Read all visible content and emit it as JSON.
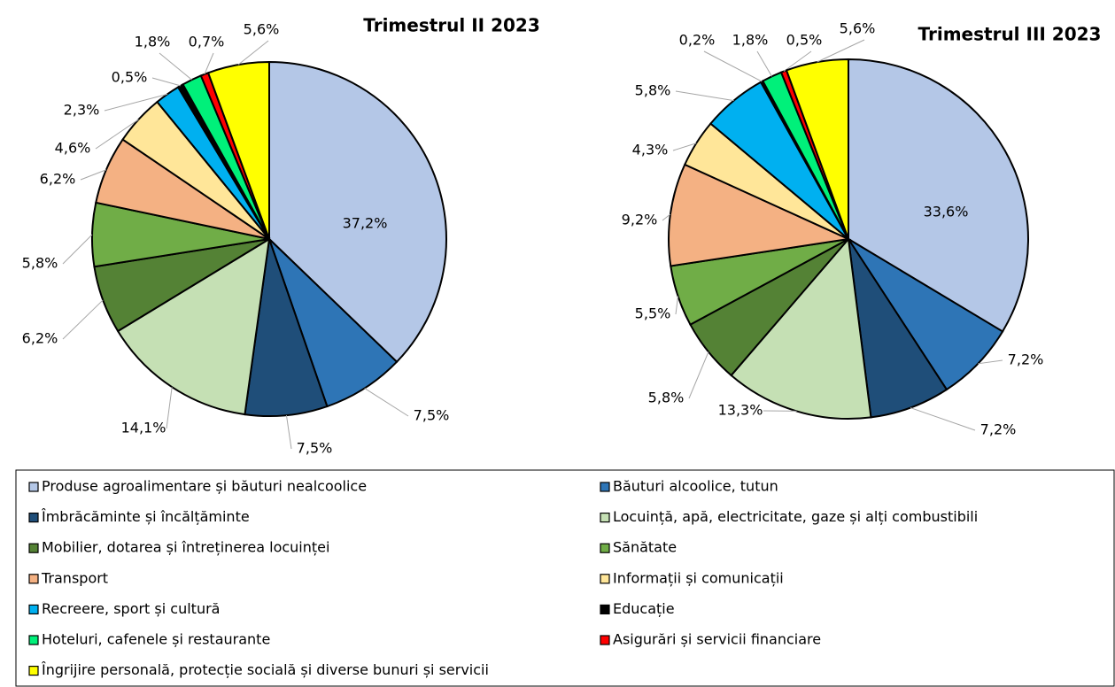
{
  "legend": {
    "categories": [
      "Produse agroalimentare și băuturi nealcoolice",
      "Băuturi alcoolice, tutun",
      "Îmbrăcăminte și încălțăminte",
      "Locuință, apă, electricitate, gaze și alți combustibili",
      "Mobilier,  dotarea și întreținerea  locuinței",
      "Sănătate",
      "Transport",
      "Informații și comunicații",
      "Recreere, sport și cultură",
      "Educație",
      "Hoteluri,  cafenele și restaurante",
      "Asigurări și servicii financiare",
      "Îngrijire personală, protecție socială și diverse bunuri și servicii"
    ],
    "colors": [
      "#b4c7e7",
      "#2e75b6",
      "#1f4e79",
      "#c5e0b4",
      "#548235",
      "#70ad47",
      "#f4b183",
      "#ffe699",
      "#00b0f0",
      "#000000",
      "#00f07a",
      "#ff0000",
      "#ffff00"
    ]
  },
  "chart_data": [
    {
      "type": "pie",
      "title": "Trimestrul  II 2023",
      "values": [
        37.2,
        7.5,
        7.5,
        14.1,
        6.2,
        5.8,
        6.2,
        4.6,
        2.3,
        0.5,
        1.8,
        0.7,
        5.6
      ],
      "value_labels": [
        "37,2%",
        "7,5%",
        "7,5%",
        "14,1%",
        "6,2%",
        "5,8%",
        "6,2%",
        "4,6%",
        "2,3%",
        "0,5%",
        "1,8%",
        "0,7%",
        "5,6%"
      ]
    },
    {
      "type": "pie",
      "title": "Trimestrul  III 2023",
      "values": [
        33.6,
        7.2,
        7.2,
        13.3,
        5.8,
        5.5,
        9.2,
        4.3,
        5.8,
        0.2,
        1.8,
        0.5,
        5.6
      ],
      "value_labels": [
        "33,6%",
        "7,2%",
        "7,2%",
        "13,3%",
        "5,8%",
        "5,5%",
        "9,2%",
        "4,3%",
        "5,8%",
        "0,2%",
        "1,8%",
        "0,5%",
        "5,6%"
      ]
    }
  ]
}
